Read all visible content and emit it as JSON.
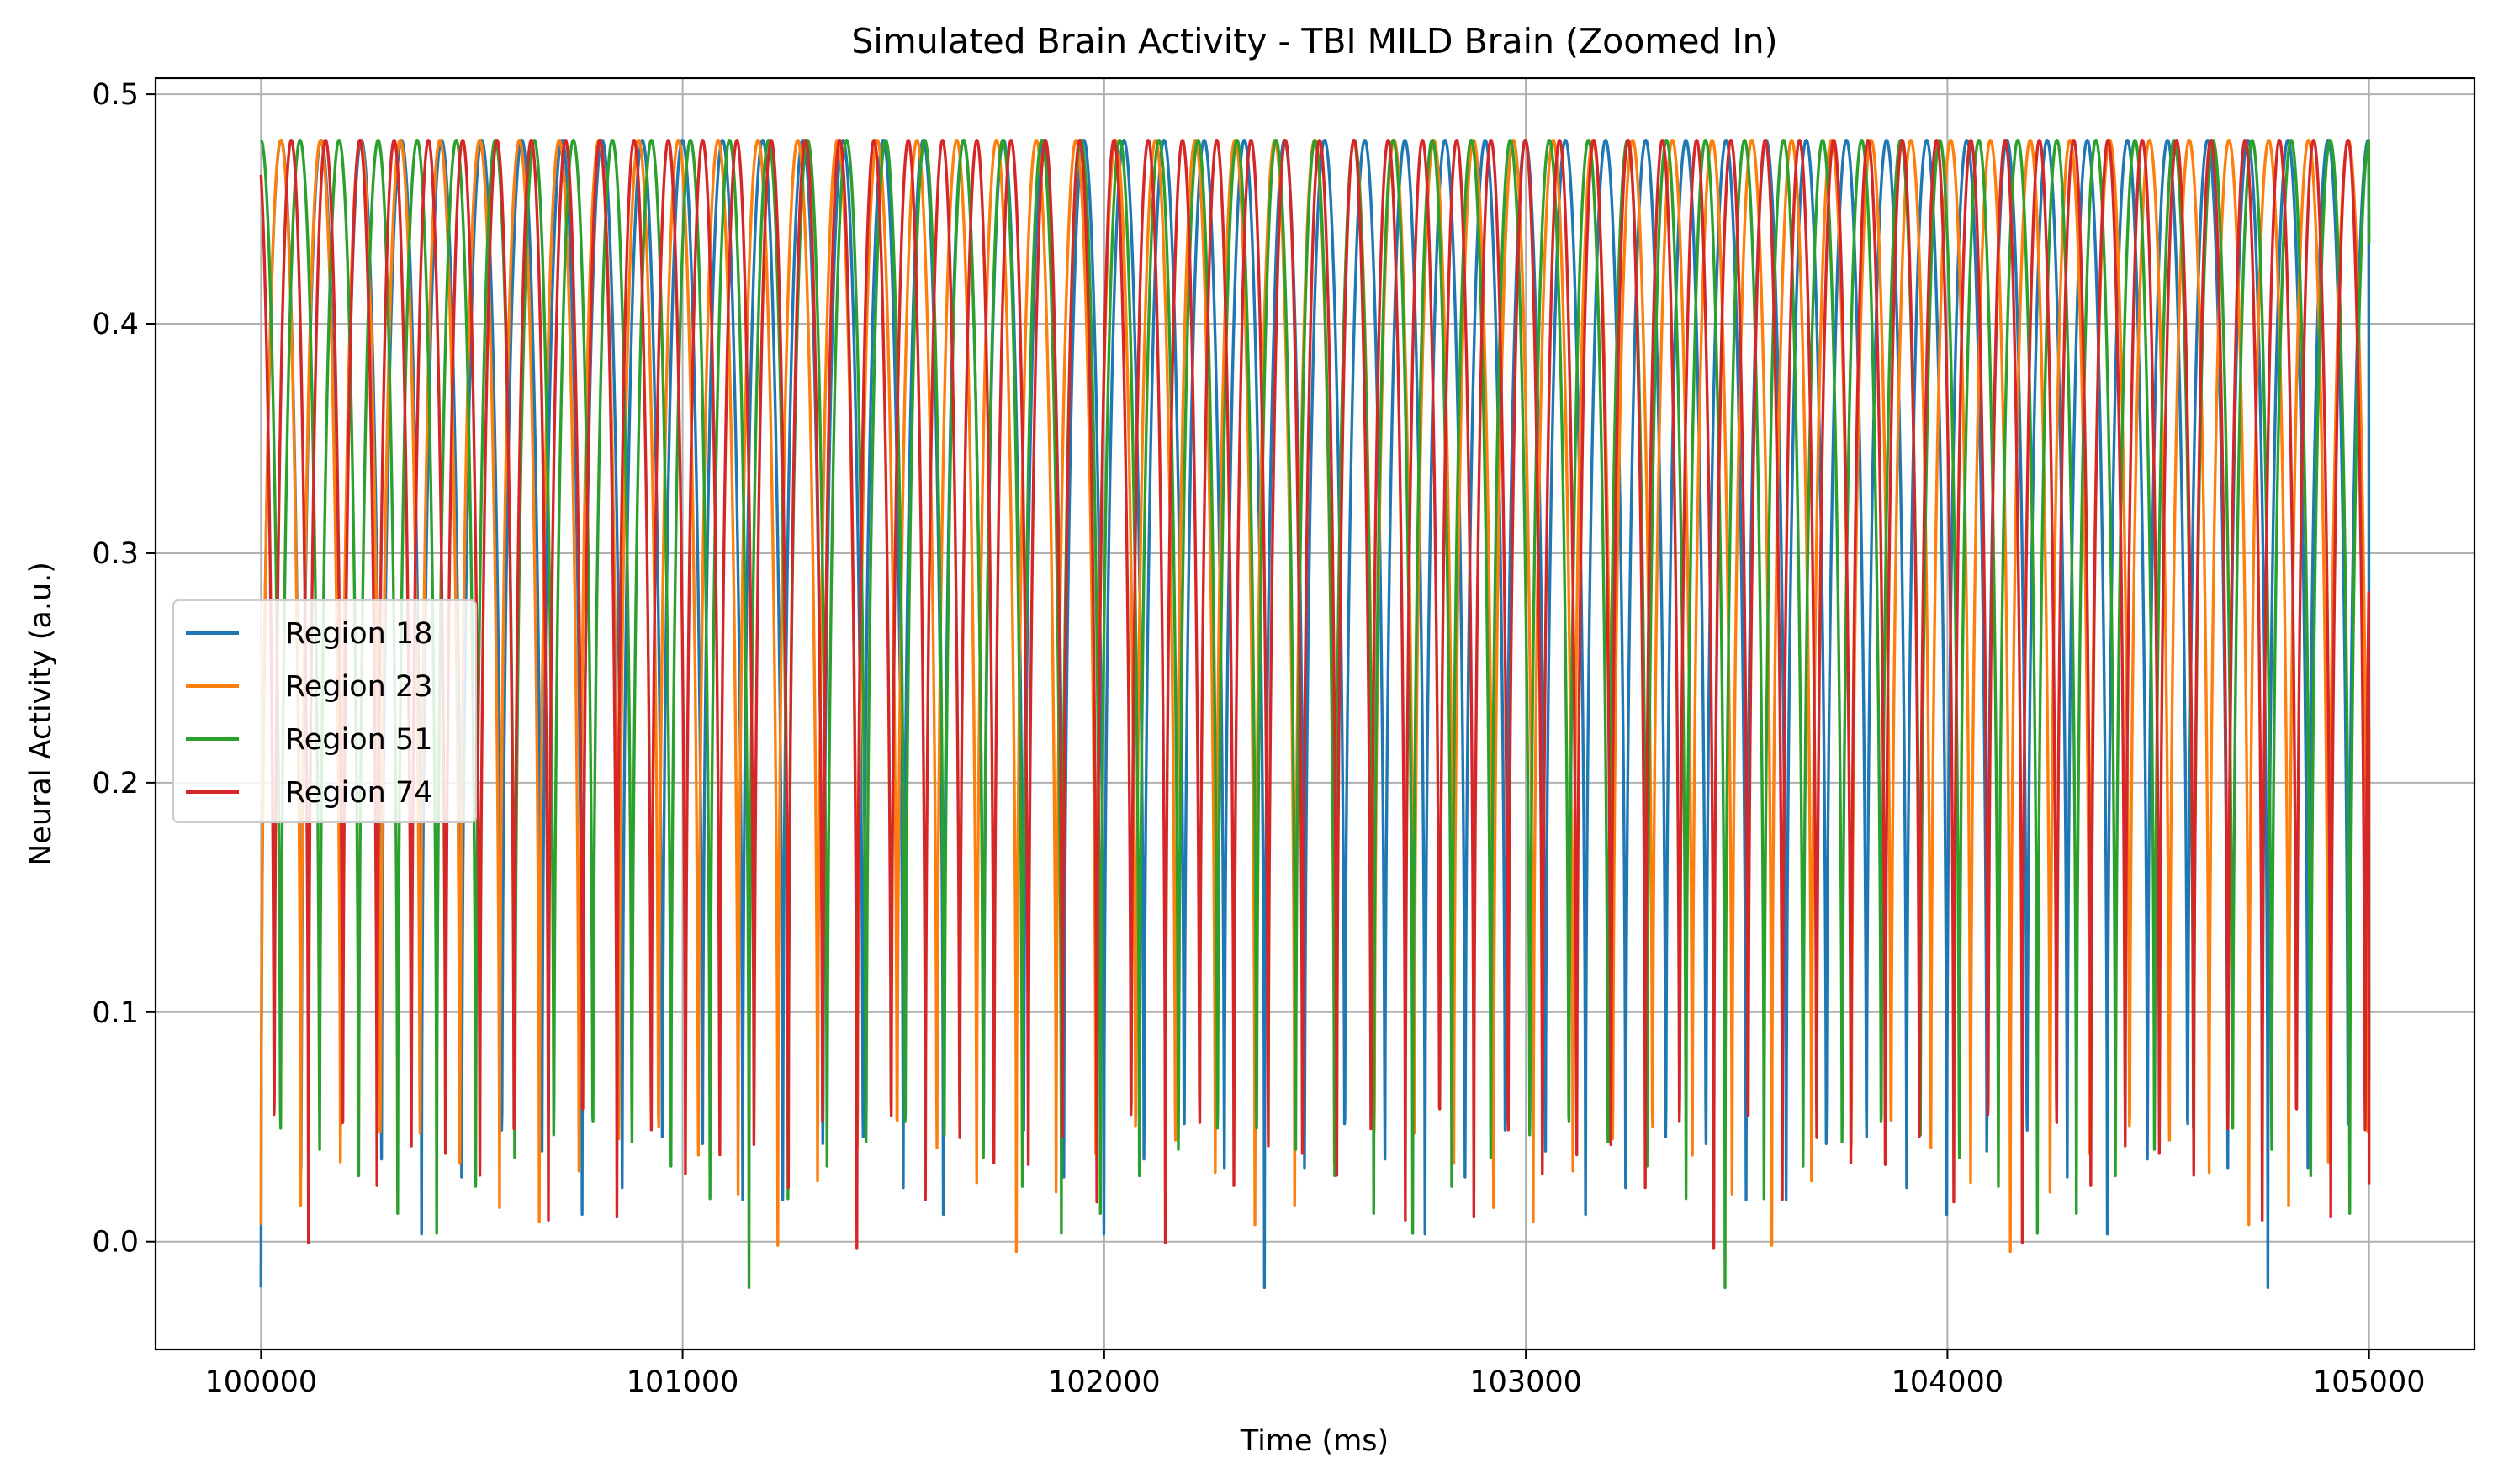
{
  "chart_data": {
    "type": "line",
    "title": "Simulated Brain Activity - TBI MILD Brain (Zoomed In)",
    "xlabel": "Time (ms)",
    "ylabel": "Neural Activity (a.u.)",
    "xlim": [
      99750,
      105250
    ],
    "ylim": [
      -0.047,
      0.507
    ],
    "x_ticks": [
      100000,
      101000,
      102000,
      103000,
      104000,
      105000
    ],
    "y_ticks": [
      0.0,
      0.1,
      0.2,
      0.3,
      0.4,
      0.5
    ],
    "x_tick_labels": [
      "100000",
      "101000",
      "102000",
      "103000",
      "104000",
      "105000"
    ],
    "y_tick_labels": [
      "0.0",
      "0.1",
      "0.2",
      "0.3",
      "0.4",
      "0.5"
    ],
    "grid": true,
    "legend_position": "center-left",
    "x_range": [
      100000,
      105000
    ],
    "series": [
      {
        "name": "Region 18",
        "color": "#1f77b4",
        "period_ms": 95.2,
        "start_value": -0.01,
        "end_value": 0.07,
        "min": -0.02,
        "max": 0.48
      },
      {
        "name": "Region 23",
        "color": "#ff7f0e",
        "period_ms": 94.3,
        "start_value": 0.012,
        "end_value": 0.225,
        "min": -0.02,
        "max": 0.48
      },
      {
        "name": "Region 51",
        "color": "#2ca02c",
        "period_ms": 92.6,
        "start_value": 0.48,
        "end_value": 0.435,
        "min": -0.02,
        "max": 0.48
      },
      {
        "name": "Region 74",
        "color": "#d62728",
        "period_ms": 81.3,
        "start_value": 0.465,
        "end_value": 0.025,
        "min": -0.02,
        "max": 0.48
      }
    ]
  }
}
